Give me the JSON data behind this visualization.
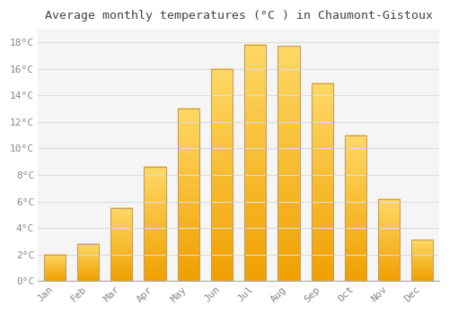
{
  "title": "Average monthly temperatures (°C ) in Chaumont-Gistoux",
  "months": [
    "Jan",
    "Feb",
    "Mar",
    "Apr",
    "May",
    "Jun",
    "Jul",
    "Aug",
    "Sep",
    "Oct",
    "Nov",
    "Dec"
  ],
  "values": [
    2.0,
    2.8,
    5.5,
    8.6,
    13.0,
    16.0,
    17.8,
    17.7,
    14.9,
    11.0,
    6.2,
    3.1
  ],
  "bar_color_top": "#FFD966",
  "bar_color_bottom": "#F0A000",
  "bar_edge_color": "#C0A060",
  "background_color": "#FFFFFF",
  "plot_bg_color": "#F5F5F5",
  "grid_color": "#DDDDDD",
  "ylim": [
    0,
    19
  ],
  "yticks": [
    0,
    2,
    4,
    6,
    8,
    10,
    12,
    14,
    16,
    18
  ],
  "ytick_labels": [
    "0°C",
    "2°C",
    "4°C",
    "6°C",
    "8°C",
    "10°C",
    "12°C",
    "14°C",
    "16°C",
    "18°C"
  ],
  "title_fontsize": 9.5,
  "tick_fontsize": 8,
  "tick_color": "#888888",
  "font_family": "monospace",
  "bar_width": 0.65
}
